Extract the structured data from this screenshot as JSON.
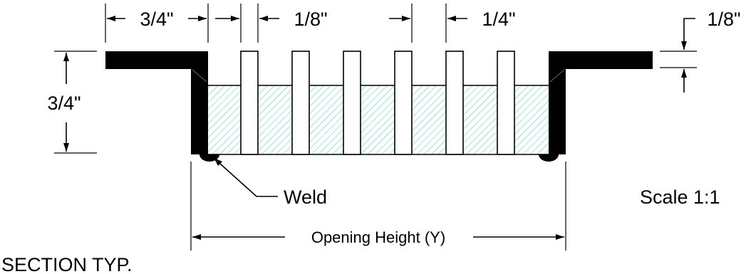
{
  "drawing": {
    "dims": {
      "flange_width": "3/4\"",
      "slot_width": "1/8\"",
      "spacing": "1/4\"",
      "thickness": "1/8\"",
      "depth": "3/4\""
    },
    "labels": {
      "weld": "Weld",
      "scale": "Scale 1:1",
      "opening": "Opening Height (Y)",
      "section": "SECTION TYP."
    },
    "colors": {
      "hatch": "#3ee6a8",
      "solid": "#000000"
    }
  }
}
